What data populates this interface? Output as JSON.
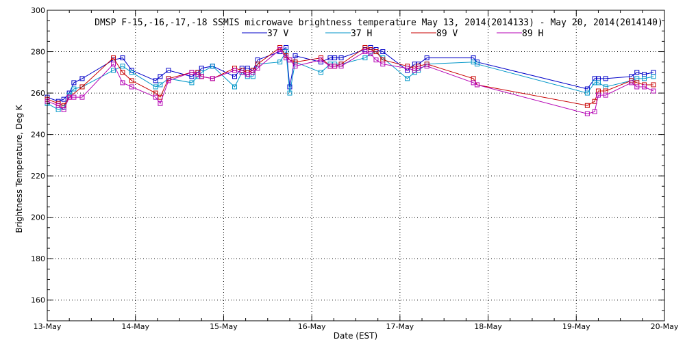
{
  "chart_data": {
    "type": "line",
    "title": "DMSP F-15,-16,-17,-18 SSMIS microwave brightness temperature May 13, 2014(2014133) - May 20, 2014(2014140)",
    "xlabel": "Date (EST)",
    "ylabel": "Brightness Temperature, Deg K",
    "xlim": [
      "2014-05-13",
      "2014-05-20"
    ],
    "ylim": [
      150,
      300
    ],
    "x_tick_labels": [
      "13-May",
      "14-May",
      "15-May",
      "16-May",
      "17-May",
      "18-May",
      "19-May",
      "20-May"
    ],
    "y_ticks": [
      160,
      180,
      200,
      220,
      240,
      260,
      280,
      300
    ],
    "grid": true,
    "legend_position": "top-center",
    "series": [
      {
        "name": "37 V",
        "color": "#0000c8",
        "points": [
          [
            "2014-05-13 00:00",
            258
          ],
          [
            "2014-05-13 03:00",
            256
          ],
          [
            "2014-05-13 04:30",
            257
          ],
          [
            "2014-05-13 06:00",
            260
          ],
          [
            "2014-05-13 07:15",
            265
          ],
          [
            "2014-05-13 09:30",
            267
          ],
          [
            "2014-05-13 18:00",
            276
          ],
          [
            "2014-05-13 20:30",
            277
          ],
          [
            "2014-05-13 23:00",
            271
          ],
          [
            "2014-05-14 05:30",
            266
          ],
          [
            "2014-05-14 06:45",
            268
          ],
          [
            "2014-05-14 09:00",
            271
          ],
          [
            "2014-05-14 15:20",
            268
          ],
          [
            "2014-05-14 17:00",
            270
          ],
          [
            "2014-05-14 18:00",
            272
          ],
          [
            "2014-05-14 21:00",
            273
          ],
          [
            "2014-05-15 03:00",
            268
          ],
          [
            "2014-05-15 05:00",
            272
          ],
          [
            "2014-05-15 06:30",
            272
          ],
          [
            "2014-05-15 08:00",
            271
          ],
          [
            "2014-05-15 09:15",
            276
          ],
          [
            "2014-05-15 15:20",
            280
          ],
          [
            "2014-05-15 17:00",
            282
          ],
          [
            "2014-05-15 18:00",
            263
          ],
          [
            "2014-05-15 19:30",
            278
          ],
          [
            "2014-05-16 02:30",
            275
          ],
          [
            "2014-05-16 05:00",
            277
          ],
          [
            "2014-05-16 06:15",
            277
          ],
          [
            "2014-05-16 08:00",
            277
          ],
          [
            "2014-05-16 14:30",
            281
          ],
          [
            "2014-05-16 16:00",
            282
          ],
          [
            "2014-05-16 17:30",
            281
          ],
          [
            "2014-05-16 19:20",
            280
          ],
          [
            "2014-05-17 02:00",
            271
          ],
          [
            "2014-05-17 04:00",
            274
          ],
          [
            "2014-05-17 05:00",
            274
          ],
          [
            "2014-05-17 07:20",
            277
          ],
          [
            "2014-05-17 20:00",
            277
          ],
          [
            "2014-05-17 21:00",
            275
          ],
          [
            "2014-05-19 03:00",
            262
          ],
          [
            "2014-05-19 05:00",
            267
          ],
          [
            "2014-05-19 06:00",
            267
          ],
          [
            "2014-05-19 08:00",
            267
          ],
          [
            "2014-05-19 15:00",
            268
          ],
          [
            "2014-05-19 16:30",
            270
          ],
          [
            "2014-05-19 18:30",
            269
          ],
          [
            "2014-05-19 21:00",
            270
          ]
        ]
      },
      {
        "name": "37 H",
        "color": "#0096c8",
        "points": [
          [
            "2014-05-13 00:00",
            255
          ],
          [
            "2014-05-13 03:00",
            252
          ],
          [
            "2014-05-13 04:30",
            253
          ],
          [
            "2014-05-13 06:00",
            259
          ],
          [
            "2014-05-13 07:15",
            262
          ],
          [
            "2014-05-13 09:30",
            263
          ],
          [
            "2014-05-13 18:00",
            271
          ],
          [
            "2014-05-13 20:30",
            273
          ],
          [
            "2014-05-13 23:00",
            270
          ],
          [
            "2014-05-14 05:30",
            263
          ],
          [
            "2014-05-14 06:45",
            264
          ],
          [
            "2014-05-14 09:00",
            267
          ],
          [
            "2014-05-14 15:20",
            265
          ],
          [
            "2014-05-14 17:00",
            268
          ],
          [
            "2014-05-14 18:00",
            270
          ],
          [
            "2014-05-14 21:00",
            273
          ],
          [
            "2014-05-15 03:00",
            263
          ],
          [
            "2014-05-15 05:00",
            270
          ],
          [
            "2014-05-15 06:30",
            268
          ],
          [
            "2014-05-15 08:00",
            268
          ],
          [
            "2014-05-15 09:15",
            274
          ],
          [
            "2014-05-15 15:20",
            275
          ],
          [
            "2014-05-15 17:00",
            280
          ],
          [
            "2014-05-15 18:00",
            260
          ],
          [
            "2014-05-15 19:30",
            275
          ],
          [
            "2014-05-16 02:30",
            270
          ],
          [
            "2014-05-16 05:00",
            274
          ],
          [
            "2014-05-16 06:15",
            274
          ],
          [
            "2014-05-16 08:00",
            274
          ],
          [
            "2014-05-16 14:30",
            277
          ],
          [
            "2014-05-16 16:00",
            279
          ],
          [
            "2014-05-16 17:30",
            280
          ],
          [
            "2014-05-16 19:20",
            277
          ],
          [
            "2014-05-17 02:00",
            267
          ],
          [
            "2014-05-17 04:00",
            270
          ],
          [
            "2014-05-17 05:00",
            271
          ],
          [
            "2014-05-17 07:20",
            274
          ],
          [
            "2014-05-17 20:00",
            275
          ],
          [
            "2014-05-17 21:00",
            274
          ],
          [
            "2014-05-19 03:00",
            260
          ],
          [
            "2014-05-19 05:00",
            265
          ],
          [
            "2014-05-19 06:00",
            265
          ],
          [
            "2014-05-19 08:00",
            263
          ],
          [
            "2014-05-19 15:00",
            266
          ],
          [
            "2014-05-19 16:30",
            267
          ],
          [
            "2014-05-19 18:30",
            267
          ],
          [
            "2014-05-19 21:00",
            268
          ]
        ]
      },
      {
        "name": "89 V",
        "color": "#c80000",
        "points": [
          [
            "2014-05-13 00:00",
            257
          ],
          [
            "2014-05-13 03:00",
            255
          ],
          [
            "2014-05-13 04:30",
            254
          ],
          [
            "2014-05-13 06:00",
            258
          ],
          [
            "2014-05-13 09:30",
            263
          ],
          [
            "2014-05-13 18:00",
            277
          ],
          [
            "2014-05-13 20:30",
            270
          ],
          [
            "2014-05-13 23:00",
            266
          ],
          [
            "2014-05-14 05:30",
            260
          ],
          [
            "2014-05-14 06:45",
            258
          ],
          [
            "2014-05-14 09:00",
            267
          ],
          [
            "2014-05-14 15:20",
            270
          ],
          [
            "2014-05-14 17:00",
            270
          ],
          [
            "2014-05-14 18:00",
            268
          ],
          [
            "2014-05-14 21:00",
            267
          ],
          [
            "2014-05-15 03:00",
            272
          ],
          [
            "2014-05-15 05:00",
            271
          ],
          [
            "2014-05-15 06:30",
            270
          ],
          [
            "2014-05-15 08:00",
            271
          ],
          [
            "2014-05-15 09:15",
            274
          ],
          [
            "2014-05-15 15:20",
            282
          ],
          [
            "2014-05-15 17:00",
            278
          ],
          [
            "2014-05-15 18:00",
            276
          ],
          [
            "2014-05-15 19:30",
            275
          ],
          [
            "2014-05-16 02:30",
            277
          ],
          [
            "2014-05-16 05:00",
            273
          ],
          [
            "2014-05-16 06:15",
            273
          ],
          [
            "2014-05-16 08:00",
            274
          ],
          [
            "2014-05-16 14:30",
            282
          ],
          [
            "2014-05-16 16:00",
            281
          ],
          [
            "2014-05-16 17:30",
            280
          ],
          [
            "2014-05-16 19:20",
            276
          ],
          [
            "2014-05-17 02:00",
            273
          ],
          [
            "2014-05-17 04:00",
            272
          ],
          [
            "2014-05-17 05:00",
            273
          ],
          [
            "2014-05-17 07:20",
            274
          ],
          [
            "2014-05-17 20:00",
            267
          ],
          [
            "2014-05-17 21:00",
            264
          ],
          [
            "2014-05-19 03:00",
            254
          ],
          [
            "2014-05-19 05:00",
            256
          ],
          [
            "2014-05-19 06:00",
            261
          ],
          [
            "2014-05-19 08:00",
            261
          ],
          [
            "2014-05-19 15:00",
            266
          ],
          [
            "2014-05-19 16:30",
            265
          ],
          [
            "2014-05-19 18:30",
            264
          ],
          [
            "2014-05-19 21:00",
            264
          ]
        ]
      },
      {
        "name": "89 H",
        "color": "#b400b4",
        "points": [
          [
            "2014-05-13 00:00",
            256
          ],
          [
            "2014-05-13 03:00",
            254
          ],
          [
            "2014-05-13 04:30",
            252
          ],
          [
            "2014-05-13 06:00",
            258
          ],
          [
            "2014-05-13 07:15",
            258
          ],
          [
            "2014-05-13 09:30",
            258
          ],
          [
            "2014-05-13 18:00",
            274
          ],
          [
            "2014-05-13 20:30",
            265
          ],
          [
            "2014-05-13 23:00",
            263
          ],
          [
            "2014-05-14 05:30",
            258
          ],
          [
            "2014-05-14 06:45",
            255
          ],
          [
            "2014-05-14 09:00",
            266
          ],
          [
            "2014-05-14 15:20",
            270
          ],
          [
            "2014-05-14 17:00",
            269
          ],
          [
            "2014-05-14 18:00",
            268
          ],
          [
            "2014-05-14 21:00",
            267
          ],
          [
            "2014-05-15 03:00",
            271
          ],
          [
            "2014-05-15 05:00",
            270
          ],
          [
            "2014-05-15 06:30",
            269
          ],
          [
            "2014-05-15 08:00",
            270
          ],
          [
            "2014-05-15 09:15",
            272
          ],
          [
            "2014-05-15 15:20",
            281
          ],
          [
            "2014-05-15 17:00",
            277
          ],
          [
            "2014-05-15 18:00",
            276
          ],
          [
            "2014-05-15 19:30",
            273
          ],
          [
            "2014-05-16 02:30",
            276
          ],
          [
            "2014-05-16 05:00",
            273
          ],
          [
            "2014-05-16 06:15",
            273
          ],
          [
            "2014-05-16 08:00",
            273
          ],
          [
            "2014-05-16 14:30",
            280
          ],
          [
            "2014-05-16 16:00",
            279
          ],
          [
            "2014-05-16 17:30",
            276
          ],
          [
            "2014-05-16 19:20",
            274
          ],
          [
            "2014-05-17 02:00",
            272
          ],
          [
            "2014-05-17 04:00",
            271
          ],
          [
            "2014-05-17 05:00",
            272
          ],
          [
            "2014-05-17 07:20",
            273
          ],
          [
            "2014-05-17 20:00",
            265
          ],
          [
            "2014-05-17 21:00",
            264
          ],
          [
            "2014-05-19 03:00",
            250
          ],
          [
            "2014-05-19 05:00",
            251
          ],
          [
            "2014-05-19 06:00",
            259
          ],
          [
            "2014-05-19 08:00",
            259
          ],
          [
            "2014-05-19 15:00",
            265
          ],
          [
            "2014-05-19 16:30",
            263
          ],
          [
            "2014-05-19 18:30",
            263
          ],
          [
            "2014-05-19 21:00",
            261
          ]
        ]
      }
    ]
  }
}
